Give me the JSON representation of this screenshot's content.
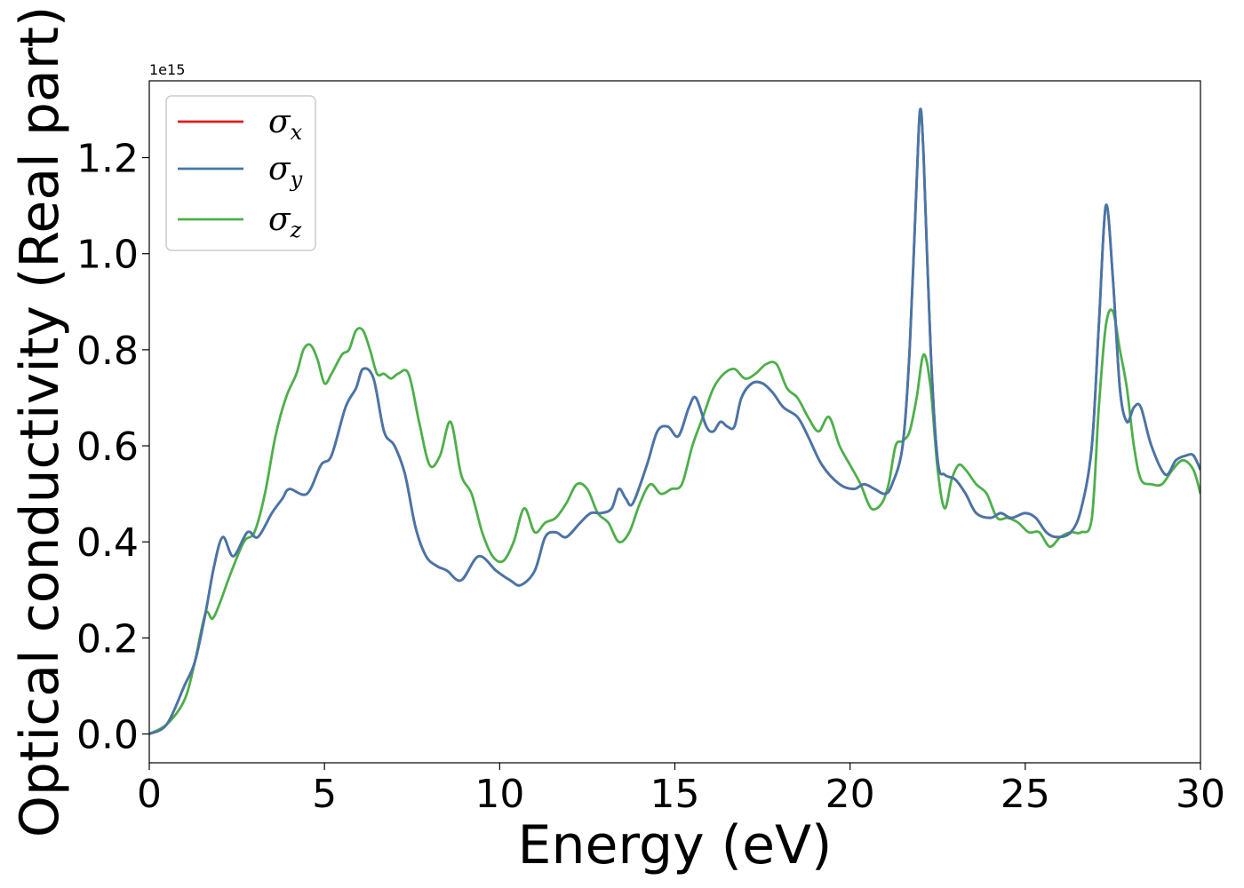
{
  "chart_data": {
    "type": "line",
    "xlabel": "Energy (eV)",
    "ylabel": "Optical conductivity (Real part)",
    "offset_text": "1e15",
    "xlim": [
      0,
      30
    ],
    "ylim": [
      -0.06,
      1.36
    ],
    "xticks": [
      0,
      5,
      10,
      15,
      20,
      25,
      30
    ],
    "xtick_labels": [
      "0",
      "5",
      "10",
      "15",
      "20",
      "25",
      "30"
    ],
    "yticks": [
      0.0,
      0.2,
      0.4,
      0.6,
      0.8,
      1.0,
      1.2
    ],
    "ytick_labels": [
      "0.0",
      "0.2",
      "0.4",
      "0.6",
      "0.8",
      "1.0",
      "1.2"
    ],
    "grid": false,
    "legend_position": "top-left",
    "series": [
      {
        "name": "σ",
        "sub": "x",
        "color": "#e41a1c",
        "x": [
          0,
          0.5,
          1,
          1.3,
          1.6,
          1.85,
          2.1,
          2.4,
          2.8,
          3.1,
          3.5,
          3.8,
          4,
          4.5,
          4.9,
          5.2,
          5.6,
          5.9,
          6.1,
          6.4,
          6.7,
          7,
          7.3,
          7.6,
          7.9,
          8.2,
          8.5,
          8.9,
          9.4,
          9.9,
          10.3,
          10.6,
          11,
          11.3,
          11.6,
          11.9,
          12.3,
          12.6,
          12.9,
          13.2,
          13.4,
          13.6,
          13.8,
          14.2,
          14.5,
          14.8,
          15.1,
          15.4,
          15.6,
          15.9,
          16.1,
          16.3,
          16.5,
          16.7,
          16.9,
          17.2,
          17.5,
          17.8,
          18.1,
          18.5,
          18.8,
          19.2,
          19.7,
          20.1,
          20.4,
          20.7,
          21,
          21.2,
          21.5,
          21.7,
          21.9,
          22,
          22.1,
          22.3,
          22.5,
          22.7,
          23,
          23.3,
          23.6,
          24,
          24.3,
          24.6,
          25,
          25.3,
          25.6,
          25.9,
          26.3,
          26.6,
          26.9,
          27.1,
          27.3,
          27.5,
          27.7,
          27.9,
          28.1,
          28.3,
          28.6,
          29,
          29.3,
          29.6,
          29.8,
          30
        ],
        "y": [
          0,
          0.02,
          0.1,
          0.15,
          0.25,
          0.35,
          0.41,
          0.37,
          0.42,
          0.41,
          0.46,
          0.49,
          0.51,
          0.5,
          0.56,
          0.58,
          0.68,
          0.72,
          0.76,
          0.74,
          0.63,
          0.6,
          0.54,
          0.43,
          0.37,
          0.35,
          0.34,
          0.32,
          0.37,
          0.34,
          0.32,
          0.31,
          0.34,
          0.41,
          0.42,
          0.41,
          0.44,
          0.46,
          0.46,
          0.47,
          0.51,
          0.49,
          0.48,
          0.56,
          0.63,
          0.64,
          0.62,
          0.68,
          0.7,
          0.64,
          0.63,
          0.65,
          0.64,
          0.64,
          0.7,
          0.73,
          0.73,
          0.71,
          0.68,
          0.66,
          0.62,
          0.56,
          0.52,
          0.51,
          0.52,
          0.51,
          0.5,
          0.52,
          0.6,
          0.8,
          1.15,
          1.3,
          1.2,
          0.8,
          0.57,
          0.54,
          0.53,
          0.5,
          0.46,
          0.45,
          0.46,
          0.45,
          0.46,
          0.45,
          0.42,
          0.41,
          0.42,
          0.47,
          0.6,
          0.85,
          1.1,
          0.95,
          0.72,
          0.65,
          0.68,
          0.68,
          0.6,
          0.54,
          0.57,
          0.58,
          0.58,
          0.55
        ]
      },
      {
        "name": "σ",
        "sub": "y",
        "color": "#4477aa",
        "x": [
          0,
          0.5,
          1,
          1.3,
          1.6,
          1.85,
          2.1,
          2.4,
          2.8,
          3.1,
          3.5,
          3.8,
          4,
          4.5,
          4.9,
          5.2,
          5.6,
          5.9,
          6.1,
          6.4,
          6.7,
          7,
          7.3,
          7.6,
          7.9,
          8.2,
          8.5,
          8.9,
          9.4,
          9.9,
          10.3,
          10.6,
          11,
          11.3,
          11.6,
          11.9,
          12.3,
          12.6,
          12.9,
          13.2,
          13.4,
          13.6,
          13.8,
          14.2,
          14.5,
          14.8,
          15.1,
          15.4,
          15.6,
          15.9,
          16.1,
          16.3,
          16.5,
          16.7,
          16.9,
          17.2,
          17.5,
          17.8,
          18.1,
          18.5,
          18.8,
          19.2,
          19.7,
          20.1,
          20.4,
          20.7,
          21,
          21.2,
          21.5,
          21.7,
          21.9,
          22,
          22.1,
          22.3,
          22.5,
          22.7,
          23,
          23.3,
          23.6,
          24,
          24.3,
          24.6,
          25,
          25.3,
          25.6,
          25.9,
          26.3,
          26.6,
          26.9,
          27.1,
          27.3,
          27.5,
          27.7,
          27.9,
          28.1,
          28.3,
          28.6,
          29,
          29.3,
          29.6,
          29.8,
          30
        ],
        "y": [
          0,
          0.02,
          0.1,
          0.15,
          0.25,
          0.35,
          0.41,
          0.37,
          0.42,
          0.41,
          0.46,
          0.49,
          0.51,
          0.5,
          0.56,
          0.58,
          0.68,
          0.72,
          0.76,
          0.74,
          0.63,
          0.6,
          0.54,
          0.43,
          0.37,
          0.35,
          0.34,
          0.32,
          0.37,
          0.34,
          0.32,
          0.31,
          0.34,
          0.41,
          0.42,
          0.41,
          0.44,
          0.46,
          0.46,
          0.47,
          0.51,
          0.49,
          0.48,
          0.56,
          0.63,
          0.64,
          0.62,
          0.68,
          0.7,
          0.64,
          0.63,
          0.65,
          0.64,
          0.64,
          0.7,
          0.73,
          0.73,
          0.71,
          0.68,
          0.66,
          0.62,
          0.56,
          0.52,
          0.51,
          0.52,
          0.51,
          0.5,
          0.52,
          0.6,
          0.8,
          1.15,
          1.3,
          1.2,
          0.8,
          0.57,
          0.54,
          0.53,
          0.5,
          0.46,
          0.45,
          0.46,
          0.45,
          0.46,
          0.45,
          0.42,
          0.41,
          0.42,
          0.47,
          0.6,
          0.85,
          1.1,
          0.95,
          0.72,
          0.65,
          0.68,
          0.68,
          0.6,
          0.54,
          0.57,
          0.58,
          0.58,
          0.55
        ]
      },
      {
        "name": "σ",
        "sub": "z",
        "color": "#4daf4a",
        "x": [
          0,
          0.5,
          1,
          1.3,
          1.6,
          1.8,
          2,
          2.3,
          2.7,
          3,
          3.3,
          3.6,
          3.9,
          4.2,
          4.4,
          4.6,
          4.8,
          5,
          5.2,
          5.5,
          5.7,
          5.9,
          6.1,
          6.3,
          6.5,
          6.7,
          6.9,
          7.1,
          7.4,
          7.7,
          8,
          8.3,
          8.6,
          8.9,
          9.2,
          9.5,
          9.8,
          10.1,
          10.4,
          10.7,
          11,
          11.3,
          11.6,
          11.9,
          12.2,
          12.5,
          12.8,
          13.1,
          13.4,
          13.7,
          14,
          14.3,
          14.6,
          14.9,
          15.2,
          15.5,
          15.8,
          16.1,
          16.4,
          16.7,
          17,
          17.3,
          17.6,
          17.9,
          18.2,
          18.5,
          18.8,
          19.1,
          19.4,
          19.7,
          20,
          20.3,
          20.6,
          20.9,
          21.1,
          21.3,
          21.5,
          21.7,
          21.9,
          22.1,
          22.3,
          22.5,
          22.7,
          22.9,
          23.1,
          23.3,
          23.6,
          23.9,
          24.2,
          24.5,
          24.8,
          25.1,
          25.4,
          25.7,
          26,
          26.3,
          26.6,
          26.9,
          27.1,
          27.3,
          27.5,
          27.7,
          27.9,
          28.1,
          28.3,
          28.6,
          28.9,
          29.2,
          29.5,
          29.8,
          30
        ],
        "y": [
          0,
          0.02,
          0.07,
          0.15,
          0.25,
          0.24,
          0.27,
          0.33,
          0.4,
          0.42,
          0.5,
          0.62,
          0.7,
          0.75,
          0.8,
          0.81,
          0.78,
          0.73,
          0.75,
          0.79,
          0.8,
          0.84,
          0.84,
          0.8,
          0.75,
          0.75,
          0.74,
          0.75,
          0.75,
          0.65,
          0.56,
          0.58,
          0.65,
          0.54,
          0.5,
          0.42,
          0.37,
          0.36,
          0.4,
          0.47,
          0.42,
          0.44,
          0.45,
          0.48,
          0.52,
          0.51,
          0.46,
          0.44,
          0.4,
          0.42,
          0.48,
          0.52,
          0.5,
          0.51,
          0.52,
          0.6,
          0.66,
          0.72,
          0.75,
          0.76,
          0.74,
          0.75,
          0.77,
          0.77,
          0.72,
          0.7,
          0.66,
          0.63,
          0.66,
          0.6,
          0.56,
          0.52,
          0.47,
          0.48,
          0.52,
          0.6,
          0.61,
          0.63,
          0.7,
          0.79,
          0.72,
          0.55,
          0.47,
          0.53,
          0.56,
          0.55,
          0.52,
          0.5,
          0.45,
          0.45,
          0.44,
          0.42,
          0.42,
          0.39,
          0.41,
          0.42,
          0.42,
          0.45,
          0.68,
          0.85,
          0.88,
          0.8,
          0.72,
          0.6,
          0.53,
          0.52,
          0.52,
          0.55,
          0.57,
          0.55,
          0.5
        ]
      }
    ]
  }
}
